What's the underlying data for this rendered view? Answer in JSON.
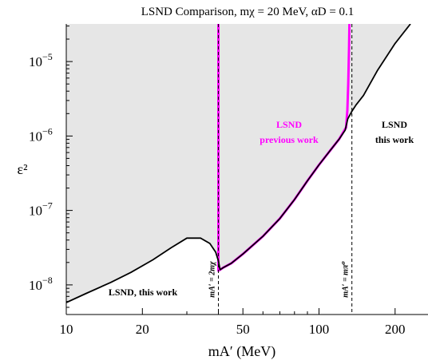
{
  "chart_data": {
    "type": "area",
    "title": "LSND Comparison,  mχ = 20 MeV,  αD = 0.1",
    "xlabel": "mA′ (MeV)",
    "ylabel": "ε²",
    "x_scale": "log",
    "y_scale": "log",
    "xlim": [
      10,
      270
    ],
    "ylim": [
      4e-09,
      3.2e-05
    ],
    "x_ticks": [
      {
        "value": 10,
        "label": "10"
      },
      {
        "value": 20,
        "label": "20"
      },
      {
        "value": 50,
        "label": "50"
      },
      {
        "value": 100,
        "label": "100"
      },
      {
        "value": 200,
        "label": "200"
      }
    ],
    "y_ticks": [
      {
        "value": 1e-08,
        "base": "10",
        "exp": "−8"
      },
      {
        "value": 1e-07,
        "base": "10",
        "exp": "−7"
      },
      {
        "value": 1e-06,
        "base": "10",
        "exp": "−6"
      },
      {
        "value": 1e-05,
        "base": "10",
        "exp": "−5"
      }
    ],
    "colors": {
      "excluded_fill": "#e6e6e6",
      "this_work": "#000000",
      "previous_work": "#ff00ff"
    },
    "series": [
      {
        "name": "LSND, this work",
        "x": [
          10,
          12,
          15,
          18,
          22,
          26,
          30,
          34,
          37,
          39,
          40,
          40.6,
          42,
          45,
          50,
          60,
          70,
          80,
          90,
          100,
          110,
          120,
          127,
          130,
          135,
          140,
          150,
          170,
          200,
          230
        ],
        "y": [
          5.8e-09,
          7.7e-09,
          1.08e-08,
          1.47e-08,
          2.17e-08,
          3.15e-08,
          4.25e-08,
          4.25e-08,
          3.6e-08,
          2.75e-08,
          2.1e-08,
          1.6e-08,
          1.72e-08,
          1.95e-08,
          2.6e-08,
          4.5e-08,
          7.8e-08,
          1.4e-07,
          2.5e-07,
          4.1e-07,
          6.2e-07,
          9e-07,
          1.2e-06,
          1.7e-06,
          2.15e-06,
          2.6e-06,
          3.5e-06,
          7.5e-06,
          1.75e-05,
          3.2e-05
        ]
      },
      {
        "name": "LSND previous work",
        "x": [
          40,
          40,
          40.6,
          42,
          45,
          50,
          60,
          70,
          80,
          90,
          100,
          110,
          120,
          128,
          129.5,
          130.5,
          131.5,
          132
        ],
        "y": [
          3.2e-05,
          1.55e-08,
          1.6e-08,
          1.72e-08,
          1.95e-08,
          2.6e-08,
          4.5e-08,
          7.8e-08,
          1.4e-07,
          2.5e-07,
          4.1e-07,
          6.2e-07,
          9e-07,
          1.3e-06,
          2.2e-06,
          5e-06,
          1.5e-05,
          3.2e-05
        ]
      }
    ],
    "reference_lines": [
      {
        "x": 40,
        "label": "mA′ = 2mχ"
      },
      {
        "x": 135,
        "label": "mA′ = mπ⁰"
      }
    ],
    "annotations": {
      "this_work_bottom": "LSND, this work",
      "previous_line1": "LSND",
      "previous_line2": "previous work",
      "right_line1": "LSND",
      "right_line2": "this work"
    }
  }
}
